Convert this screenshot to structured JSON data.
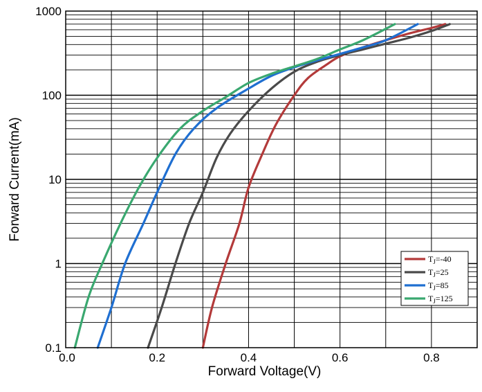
{
  "chart_data": {
    "type": "line",
    "xlabel": "Forward Voltage(V)",
    "ylabel": "Forward Current(mA)",
    "xscale": "linear",
    "yscale": "log",
    "xlim": [
      0.0,
      0.9
    ],
    "ylim": [
      0.1,
      1000
    ],
    "x_ticks": [
      0.0,
      0.2,
      0.4,
      0.6,
      0.8
    ],
    "x_tick_labels": [
      "0.0",
      "0.2",
      "0.4",
      "0.6",
      "0.8"
    ],
    "y_ticks": [
      0.1,
      1,
      10,
      100,
      1000
    ],
    "y_tick_labels": [
      "0.1",
      "1",
      "10",
      "100",
      "1000"
    ],
    "grid": true,
    "legend_position": "bottom-right",
    "series": [
      {
        "name": "TJ=-40",
        "label_main": "T",
        "label_sub": "J",
        "label_rest": "=-40",
        "color": "#b33a3a",
        "points": [
          [
            0.3,
            0.1
          ],
          [
            0.32,
            0.3
          ],
          [
            0.35,
            1
          ],
          [
            0.38,
            3
          ],
          [
            0.4,
            8
          ],
          [
            0.43,
            20
          ],
          [
            0.46,
            45
          ],
          [
            0.5,
            100
          ],
          [
            0.53,
            160
          ],
          [
            0.57,
            230
          ],
          [
            0.6,
            290
          ],
          [
            0.65,
            370
          ],
          [
            0.7,
            450
          ],
          [
            0.75,
            540
          ],
          [
            0.8,
            630
          ],
          [
            0.83,
            700
          ]
        ]
      },
      {
        "name": "TJ=25",
        "label_main": "T",
        "label_sub": "J",
        "label_rest": "=25",
        "color": "#4a4a4a",
        "points": [
          [
            0.18,
            0.1
          ],
          [
            0.21,
            0.3
          ],
          [
            0.24,
            1
          ],
          [
            0.27,
            3
          ],
          [
            0.3,
            7
          ],
          [
            0.33,
            18
          ],
          [
            0.36,
            35
          ],
          [
            0.4,
            65
          ],
          [
            0.45,
            120
          ],
          [
            0.5,
            190
          ],
          [
            0.55,
            250
          ],
          [
            0.6,
            300
          ],
          [
            0.65,
            350
          ],
          [
            0.7,
            410
          ],
          [
            0.75,
            480
          ],
          [
            0.8,
            580
          ],
          [
            0.84,
            700
          ]
        ]
      },
      {
        "name": "TJ=85",
        "label_main": "T",
        "label_sub": "J",
        "label_rest": "=85",
        "color": "#1f6fd1",
        "points": [
          [
            0.07,
            0.1
          ],
          [
            0.1,
            0.3
          ],
          [
            0.13,
            1
          ],
          [
            0.17,
            3
          ],
          [
            0.2,
            7
          ],
          [
            0.24,
            20
          ],
          [
            0.28,
            40
          ],
          [
            0.33,
            70
          ],
          [
            0.4,
            120
          ],
          [
            0.45,
            170
          ],
          [
            0.5,
            215
          ],
          [
            0.55,
            260
          ],
          [
            0.6,
            310
          ],
          [
            0.65,
            370
          ],
          [
            0.7,
            450
          ],
          [
            0.77,
            700
          ]
        ]
      },
      {
        "name": "TJ=125",
        "label_main": "T",
        "label_sub": "J",
        "label_rest": "=125",
        "color": "#3aa870",
        "points": [
          [
            0.02,
            0.1
          ],
          [
            0.05,
            0.4
          ],
          [
            0.08,
            1
          ],
          [
            0.12,
            3
          ],
          [
            0.16,
            8
          ],
          [
            0.2,
            18
          ],
          [
            0.25,
            40
          ],
          [
            0.3,
            65
          ],
          [
            0.35,
            95
          ],
          [
            0.4,
            140
          ],
          [
            0.45,
            180
          ],
          [
            0.5,
            220
          ],
          [
            0.55,
            270
          ],
          [
            0.6,
            350
          ],
          [
            0.65,
            450
          ],
          [
            0.72,
            700
          ]
        ]
      }
    ]
  }
}
